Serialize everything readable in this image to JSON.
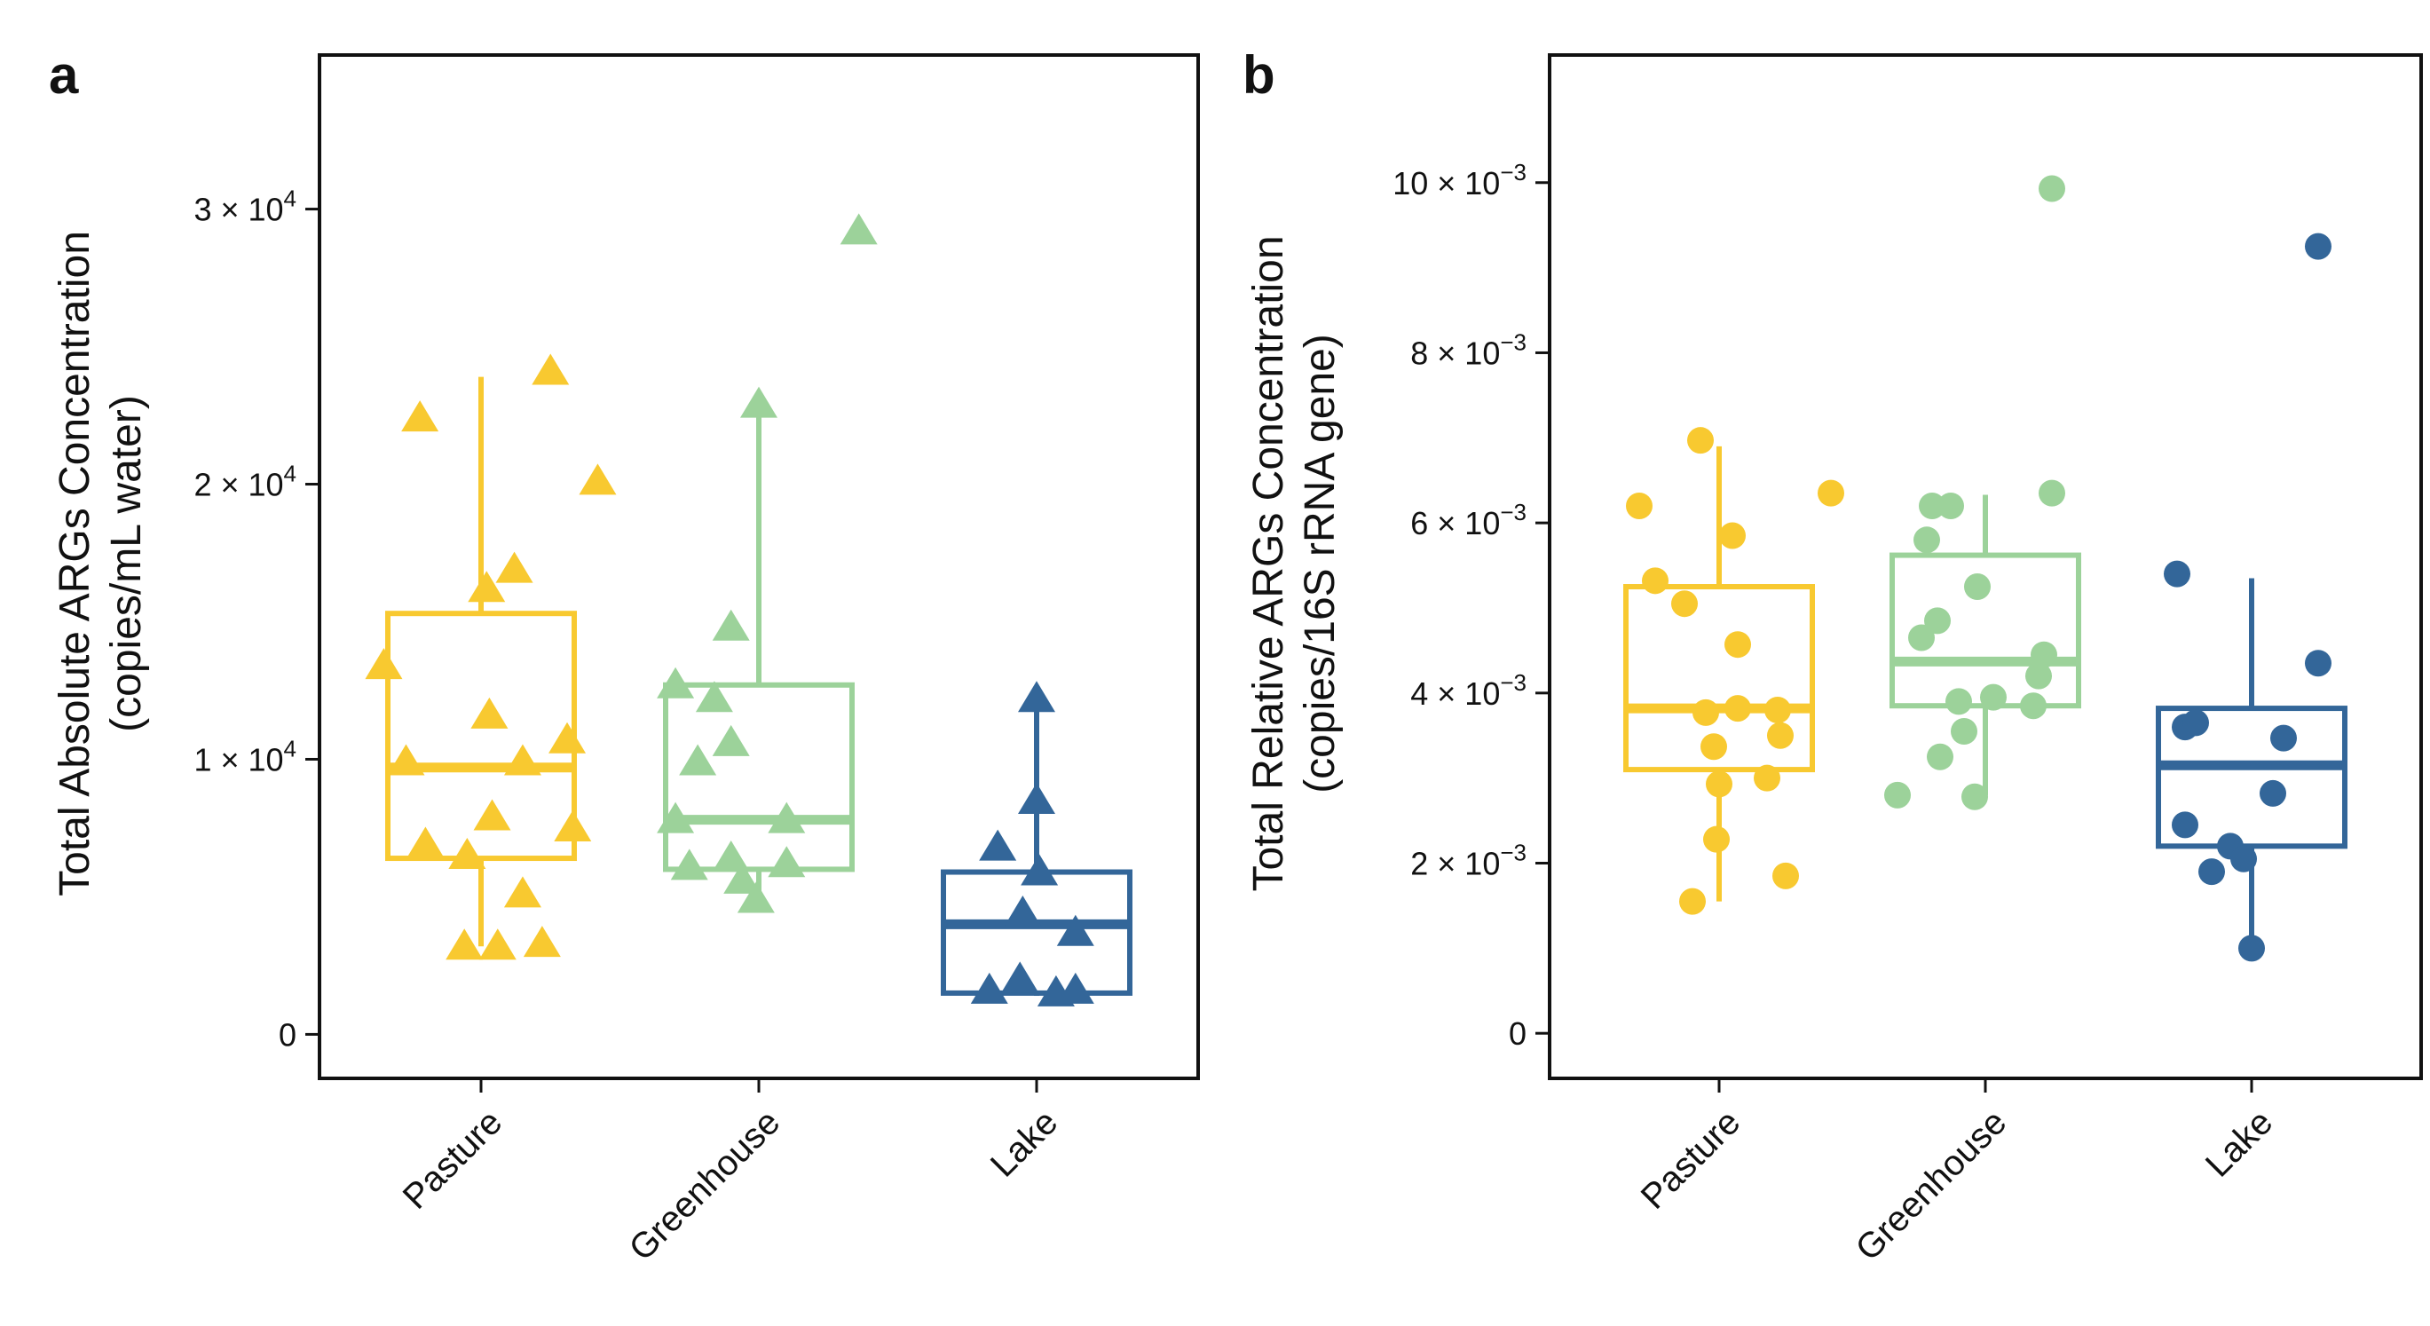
{
  "colors": {
    "Pasture": "#F8C930",
    "Greenhouse": "#9CD29A",
    "Lake": "#336699",
    "axis": "#111111"
  },
  "chart_data": [
    {
      "panel": "a",
      "type": "box",
      "ylabel_line1": "Total Absolute ARGs Concentration",
      "ylabel_line2": "(copies/mL water)",
      "marker": "triangle",
      "ylim": [
        -1600,
        35600
      ],
      "yticks": [
        {
          "value": 0,
          "label": "0",
          "mantissa": "",
          "exponent": ""
        },
        {
          "value": 10000,
          "label": "",
          "mantissa": "1 × 10",
          "exponent": "4"
        },
        {
          "value": 20000,
          "label": "",
          "mantissa": "2 × 10",
          "exponent": "4"
        },
        {
          "value": 30000,
          "label": "",
          "mantissa": "3 × 10",
          "exponent": "4"
        }
      ],
      "categories": [
        "Pasture",
        "Greenhouse",
        "Lake"
      ],
      "boxes": [
        {
          "name": "Pasture",
          "min": 3200,
          "q1": 6400,
          "median": 9700,
          "q3": 15300,
          "max": 23900
        },
        {
          "name": "Greenhouse",
          "min": 4800,
          "q1": 6000,
          "median": 7800,
          "q3": 12700,
          "max": 22600
        },
        {
          "name": "Lake",
          "min": 1400,
          "q1": 1500,
          "median": 4000,
          "q3": 5900,
          "max": 12100
        }
      ],
      "points": [
        {
          "group": "Pasture",
          "jitter": 0.25,
          "y": 24100
        },
        {
          "group": "Pasture",
          "jitter": -0.22,
          "y": 22400
        },
        {
          "group": "Pasture",
          "jitter": 0.42,
          "y": 20100
        },
        {
          "group": "Pasture",
          "jitter": 0.12,
          "y": 16900
        },
        {
          "group": "Pasture",
          "jitter": 0.02,
          "y": 16200
        },
        {
          "group": "Pasture",
          "jitter": -0.35,
          "y": 13400
        },
        {
          "group": "Pasture",
          "jitter": 0.03,
          "y": 11600
        },
        {
          "group": "Pasture",
          "jitter": 0.31,
          "y": 10700
        },
        {
          "group": "Pasture",
          "jitter": -0.27,
          "y": 9900
        },
        {
          "group": "Pasture",
          "jitter": 0.15,
          "y": 9900
        },
        {
          "group": "Pasture",
          "jitter": 0.04,
          "y": 7900
        },
        {
          "group": "Pasture",
          "jitter": 0.33,
          "y": 7500
        },
        {
          "group": "Pasture",
          "jitter": -0.2,
          "y": 6900
        },
        {
          "group": "Pasture",
          "jitter": -0.05,
          "y": 6500
        },
        {
          "group": "Pasture",
          "jitter": 0.15,
          "y": 5100
        },
        {
          "group": "Pasture",
          "jitter": -0.06,
          "y": 3200
        },
        {
          "group": "Pasture",
          "jitter": 0.06,
          "y": 3200
        },
        {
          "group": "Pasture",
          "jitter": 0.22,
          "y": 3300
        },
        {
          "group": "Greenhouse",
          "jitter": 0.36,
          "y": 29200
        },
        {
          "group": "Greenhouse",
          "jitter": 0.0,
          "y": 22900
        },
        {
          "group": "Greenhouse",
          "jitter": -0.1,
          "y": 14800
        },
        {
          "group": "Greenhouse",
          "jitter": -0.3,
          "y": 12700
        },
        {
          "group": "Greenhouse",
          "jitter": -0.16,
          "y": 12200
        },
        {
          "group": "Greenhouse",
          "jitter": -0.1,
          "y": 10600
        },
        {
          "group": "Greenhouse",
          "jitter": -0.22,
          "y": 9900
        },
        {
          "group": "Greenhouse",
          "jitter": -0.3,
          "y": 7800
        },
        {
          "group": "Greenhouse",
          "jitter": 0.1,
          "y": 7800
        },
        {
          "group": "Greenhouse",
          "jitter": -0.25,
          "y": 6100
        },
        {
          "group": "Greenhouse",
          "jitter": -0.1,
          "y": 6400
        },
        {
          "group": "Greenhouse",
          "jitter": 0.1,
          "y": 6200
        },
        {
          "group": "Greenhouse",
          "jitter": -0.06,
          "y": 5600
        },
        {
          "group": "Greenhouse",
          "jitter": -0.01,
          "y": 4900
        },
        {
          "group": "Lake",
          "jitter": -0.14,
          "y": 6800
        },
        {
          "group": "Lake",
          "jitter": 0.0,
          "y": 8500
        },
        {
          "group": "Lake",
          "jitter": 0.0,
          "y": 12200
        },
        {
          "group": "Lake",
          "jitter": 0.01,
          "y": 5900
        },
        {
          "group": "Lake",
          "jitter": -0.05,
          "y": 4400
        },
        {
          "group": "Lake",
          "jitter": 0.14,
          "y": 3700
        },
        {
          "group": "Lake",
          "jitter": -0.17,
          "y": 1600
        },
        {
          "group": "Lake",
          "jitter": -0.06,
          "y": 2000
        },
        {
          "group": "Lake",
          "jitter": 0.14,
          "y": 1600
        },
        {
          "group": "Lake",
          "jitter": 0.07,
          "y": 1500
        }
      ]
    },
    {
      "panel": "b",
      "type": "box",
      "ylabel_line1": "Total Relative ARGs Concentration",
      "ylabel_line2": "(copies/16S rRNA gene)",
      "marker": "circle",
      "ylim": [
        -0.00053,
        0.0115
      ],
      "yticks": [
        {
          "value": 0,
          "label": "0",
          "mantissa": "",
          "exponent": ""
        },
        {
          "value": 0.002,
          "label": "",
          "mantissa": "2 × 10",
          "exponent": "−3"
        },
        {
          "value": 0.004,
          "label": "",
          "mantissa": "4 × 10",
          "exponent": "−3"
        },
        {
          "value": 0.006,
          "label": "",
          "mantissa": "6 × 10",
          "exponent": "−3"
        },
        {
          "value": 0.008,
          "label": "",
          "mantissa": "8 × 10",
          "exponent": "−3"
        },
        {
          "value": 0.01,
          "label": "",
          "mantissa": "10 × 10",
          "exponent": "−3"
        }
      ],
      "categories": [
        "Pasture",
        "Greenhouse",
        "Lake"
      ],
      "boxes": [
        {
          "name": "Pasture",
          "min": 0.00155,
          "q1": 0.0031,
          "median": 0.00382,
          "q3": 0.00525,
          "max": 0.0069
        },
        {
          "name": "Greenhouse",
          "min": 0.0028,
          "q1": 0.00385,
          "median": 0.00437,
          "q3": 0.00562,
          "max": 0.00633
        },
        {
          "name": "Lake",
          "min": 0.001,
          "q1": 0.0022,
          "median": 0.00315,
          "q3": 0.00382,
          "max": 0.00535
        }
      ],
      "points": [
        {
          "group": "Pasture",
          "jitter": -0.07,
          "y": 0.00697
        },
        {
          "group": "Pasture",
          "jitter": -0.3,
          "y": 0.0062
        },
        {
          "group": "Pasture",
          "jitter": 0.42,
          "y": 0.00635
        },
        {
          "group": "Pasture",
          "jitter": 0.05,
          "y": 0.00585
        },
        {
          "group": "Pasture",
          "jitter": -0.24,
          "y": 0.00532
        },
        {
          "group": "Pasture",
          "jitter": -0.13,
          "y": 0.00505
        },
        {
          "group": "Pasture",
          "jitter": 0.07,
          "y": 0.00457
        },
        {
          "group": "Pasture",
          "jitter": -0.05,
          "y": 0.00377
        },
        {
          "group": "Pasture",
          "jitter": 0.07,
          "y": 0.00382
        },
        {
          "group": "Pasture",
          "jitter": 0.22,
          "y": 0.0038
        },
        {
          "group": "Pasture",
          "jitter": 0.23,
          "y": 0.0035
        },
        {
          "group": "Pasture",
          "jitter": -0.02,
          "y": 0.00337
        },
        {
          "group": "Pasture",
          "jitter": 0.18,
          "y": 0.003
        },
        {
          "group": "Pasture",
          "jitter": 0.0,
          "y": 0.00293
        },
        {
          "group": "Pasture",
          "jitter": -0.01,
          "y": 0.00228
        },
        {
          "group": "Pasture",
          "jitter": 0.25,
          "y": 0.00185
        },
        {
          "group": "Pasture",
          "jitter": -0.1,
          "y": 0.00155
        },
        {
          "group": "Greenhouse",
          "jitter": 0.25,
          "y": 0.00993
        },
        {
          "group": "Greenhouse",
          "jitter": 0.25,
          "y": 0.00635
        },
        {
          "group": "Greenhouse",
          "jitter": -0.2,
          "y": 0.0062
        },
        {
          "group": "Greenhouse",
          "jitter": -0.13,
          "y": 0.0062
        },
        {
          "group": "Greenhouse",
          "jitter": -0.22,
          "y": 0.0058
        },
        {
          "group": "Greenhouse",
          "jitter": -0.03,
          "y": 0.00525
        },
        {
          "group": "Greenhouse",
          "jitter": -0.18,
          "y": 0.00485
        },
        {
          "group": "Greenhouse",
          "jitter": -0.24,
          "y": 0.00465
        },
        {
          "group": "Greenhouse",
          "jitter": 0.22,
          "y": 0.00445
        },
        {
          "group": "Greenhouse",
          "jitter": 0.2,
          "y": 0.0042
        },
        {
          "group": "Greenhouse",
          "jitter": -0.1,
          "y": 0.0039
        },
        {
          "group": "Greenhouse",
          "jitter": 0.03,
          "y": 0.00395
        },
        {
          "group": "Greenhouse",
          "jitter": 0.18,
          "y": 0.00385
        },
        {
          "group": "Greenhouse",
          "jitter": -0.08,
          "y": 0.00355
        },
        {
          "group": "Greenhouse",
          "jitter": -0.17,
          "y": 0.00325
        },
        {
          "group": "Greenhouse",
          "jitter": -0.33,
          "y": 0.0028
        },
        {
          "group": "Greenhouse",
          "jitter": -0.04,
          "y": 0.00278
        },
        {
          "group": "Lake",
          "jitter": 0.25,
          "y": 0.00925
        },
        {
          "group": "Lake",
          "jitter": -0.28,
          "y": 0.0054
        },
        {
          "group": "Lake",
          "jitter": 0.25,
          "y": 0.00435
        },
        {
          "group": "Lake",
          "jitter": -0.25,
          "y": 0.0036
        },
        {
          "group": "Lake",
          "jitter": -0.21,
          "y": 0.00365
        },
        {
          "group": "Lake",
          "jitter": 0.12,
          "y": 0.00347
        },
        {
          "group": "Lake",
          "jitter": -0.25,
          "y": 0.00245
        },
        {
          "group": "Lake",
          "jitter": 0.08,
          "y": 0.00282
        },
        {
          "group": "Lake",
          "jitter": -0.08,
          "y": 0.0022
        },
        {
          "group": "Lake",
          "jitter": -0.03,
          "y": 0.00205
        },
        {
          "group": "Lake",
          "jitter": -0.15,
          "y": 0.0019
        },
        {
          "group": "Lake",
          "jitter": 0.0,
          "y": 0.001
        }
      ]
    }
  ]
}
